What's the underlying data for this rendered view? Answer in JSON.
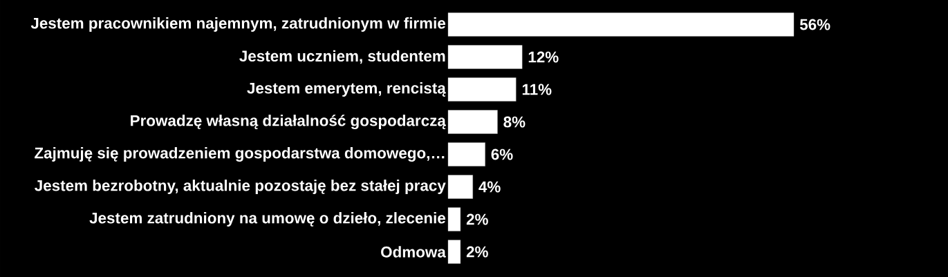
{
  "chart_data": {
    "type": "bar",
    "orientation": "horizontal",
    "categories": [
      "Jestem pracownikiem najemnym, zatrudnionym w firmie",
      "Jestem uczniem, studentem",
      "Jestem emerytem, rencistą",
      "Prowadzę własną działalność gospodarczą",
      "Zajmuję się prowadzeniem gospodarstwa domowego,…",
      "Jestem bezrobotny, aktualnie pozostaję bez stałej pracy",
      "Jestem zatrudniony na umowę o dzieło, zlecenie",
      "Odmowa"
    ],
    "values": [
      56,
      12,
      11,
      8,
      6,
      4,
      2,
      2
    ],
    "value_labels": [
      "56%",
      "12%",
      "11%",
      "8%",
      "6%",
      "4%",
      "2%",
      "2%"
    ],
    "color": "#ffffff",
    "tick_labels": "y"
  }
}
